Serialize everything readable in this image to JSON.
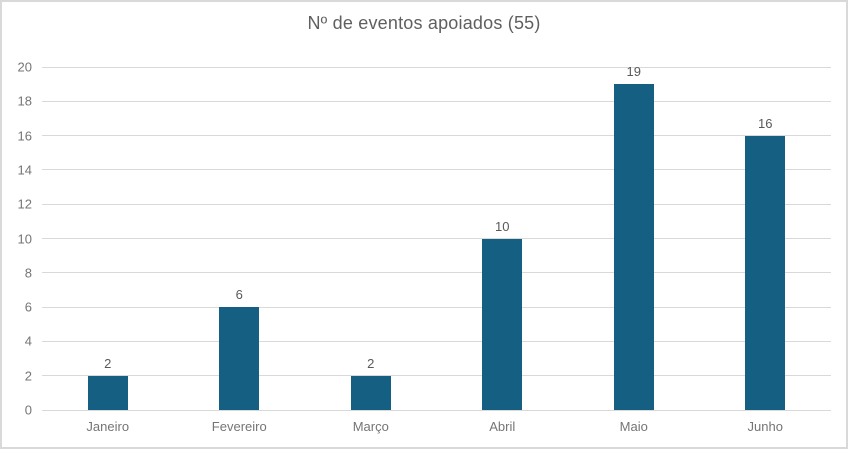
{
  "window": {
    "background_color": "#ffffff",
    "border_color": "#d9d9d9"
  },
  "chart_data": {
    "type": "bar",
    "title": "Nº de eventos apoiados (55)",
    "categories": [
      "Janeiro",
      "Fevereiro",
      "Março",
      "Abril",
      "Maio",
      "Junho"
    ],
    "values": [
      2,
      6,
      2,
      10,
      19,
      16
    ],
    "total": 55,
    "xlabel": "",
    "ylabel": "",
    "ylim": [
      0,
      20
    ],
    "yticks": [
      0,
      2,
      4,
      6,
      8,
      10,
      12,
      14,
      16,
      18,
      20
    ],
    "grid": true,
    "legend_position": "none",
    "data_labels": true,
    "colors": {
      "bar_fill": "#156082",
      "gridline": "#d9d9d9",
      "title_text": "#5f5f5f",
      "axis_tick_text": "#757575",
      "data_label_text": "#595959"
    }
  }
}
